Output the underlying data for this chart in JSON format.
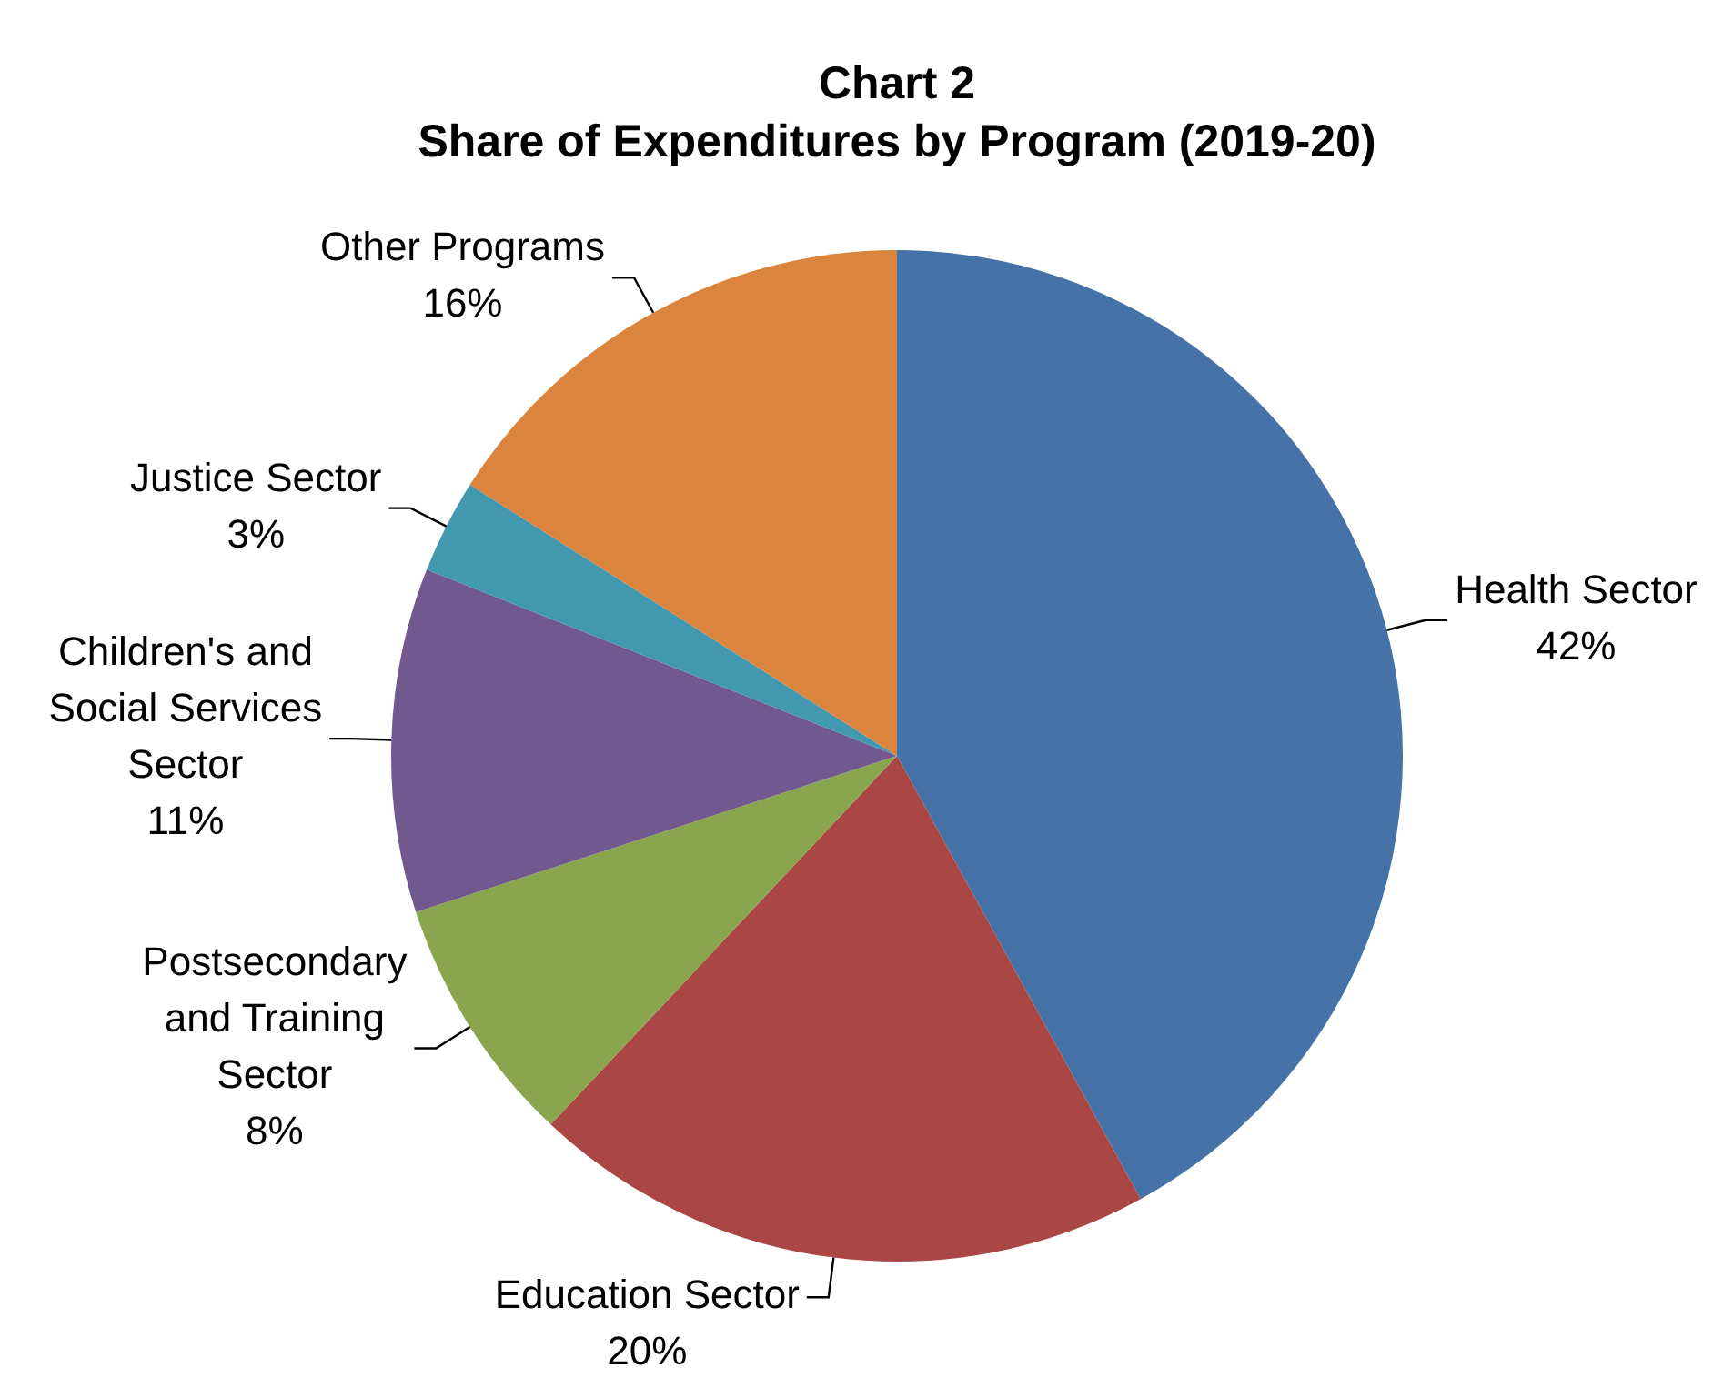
{
  "chart_data": {
    "type": "pie",
    "title": "Chart 2",
    "subtitle": "Share of Expenditures by Program (2019-20)",
    "categories": [
      "Health Sector",
      "Education Sector",
      "Postsecondary and Training Sector",
      "Children's and Social Services Sector",
      "Justice Sector",
      "Other Programs"
    ],
    "values": [
      42,
      20,
      8,
      11,
      3,
      16
    ],
    "value_labels": [
      "42%",
      "20%",
      "8%",
      "11%",
      "3%",
      "16%"
    ],
    "colors": [
      "#4573a7",
      "#aa4643",
      "#89a54e",
      "#71588f",
      "#4198af",
      "#db843d"
    ],
    "legend": false
  }
}
